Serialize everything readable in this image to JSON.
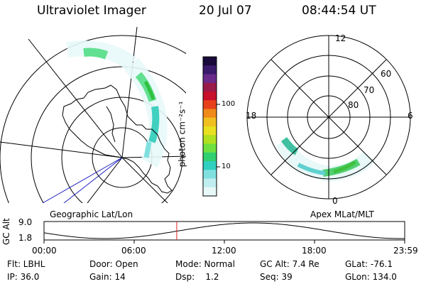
{
  "header": {
    "instrument": "Ultraviolet Imager",
    "date": "20 Jul 07",
    "time": "08:44:54 UT"
  },
  "left_panel": {
    "caption": "Geographic Lat/Lon"
  },
  "right_panel": {
    "caption": "Apex MLat/MLT",
    "mlt_labels": [
      "12",
      "18",
      "6",
      "0"
    ],
    "mlat_labels": [
      "60",
      "70",
      "80"
    ]
  },
  "colorbar": {
    "unit_label": "photon cm⁻²s⁻¹",
    "tick_labels": [
      "100",
      "10"
    ],
    "colors": [
      "#1a0a3a",
      "#3a1a6a",
      "#6a2a8a",
      "#9a1a4a",
      "#c8102a",
      "#e8401a",
      "#f08a1a",
      "#f0c020",
      "#e8e020",
      "#b0e020",
      "#70e040",
      "#30d070",
      "#30d0c0",
      "#80e0e0",
      "#c0eef0",
      "#e8f8f8"
    ]
  },
  "timeline": {
    "axis_label": "GC Alt",
    "y_ticks": [
      "9.0",
      "1.8"
    ],
    "x_ticks": [
      "00:00",
      "06:00",
      "12:00",
      "18:00",
      "23:59"
    ],
    "current_time_fraction": 0.368
  },
  "info": {
    "filter": "Flt: LBHL",
    "ip": "IP: 36.0",
    "door": "Door: Open",
    "gain": "Gain: 14",
    "mode": "Mode: Normal",
    "dsp": "Dsp:    1.2",
    "gc_alt": "GC Alt: 7.4 Re",
    "seq": "Seq: 39",
    "glat": "GLat: -76.1",
    "glon": "GLon: 134.0"
  }
}
